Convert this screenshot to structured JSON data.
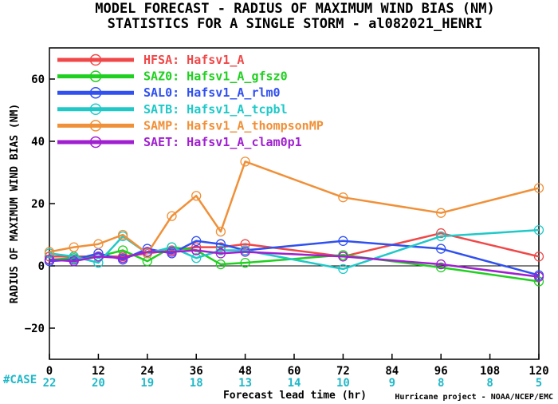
{
  "chart_data": {
    "type": "line",
    "title": "MODEL FORECAST - RADIUS OF MAXIMUM WIND BIAS (NM)",
    "subtitle": "STATISTICS FOR A SINGLE STORM - al082021_HENRI",
    "xlabel": "Forecast lead time (hr)",
    "ylabel": "RADIUS OF MAXIMUM WIND BIAS (NM)",
    "xlim": [
      0,
      120
    ],
    "ylim": [
      -30,
      70
    ],
    "xticks": [
      0,
      12,
      24,
      36,
      48,
      60,
      72,
      84,
      96,
      108,
      120
    ],
    "yticks": [
      -20,
      0,
      20,
      40,
      60
    ],
    "grid": false,
    "legend_position": "top-left",
    "case_label": "#CASE",
    "case_counts": [
      {
        "x": 0,
        "n": "22"
      },
      {
        "x": 12,
        "n": "20"
      },
      {
        "x": 24,
        "n": "19"
      },
      {
        "x": 36,
        "n": "18"
      },
      {
        "x": 48,
        "n": "13"
      },
      {
        "x": 60,
        "n": "14"
      },
      {
        "x": 72,
        "n": "10"
      },
      {
        "x": 84,
        "n": "9"
      },
      {
        "x": 96,
        "n": "8"
      },
      {
        "x": 108,
        "n": "8"
      },
      {
        "x": 120,
        "n": "5"
      }
    ],
    "credit": "Hurricane project - NOAA/NCEP/EMC",
    "series": [
      {
        "name": "HFSA: Hafsv1_A",
        "color": "#f04848",
        "x": [
          0,
          6,
          12,
          18,
          24,
          30,
          36,
          42,
          48,
          72,
          96,
          120
        ],
        "values": [
          3,
          3,
          3,
          3,
          4,
          5,
          6,
          6,
          7,
          3,
          10.5,
          3
        ]
      },
      {
        "name": "SAZ0: Hafsv1_A_gfsz0",
        "color": "#20d020",
        "x": [
          0,
          6,
          12,
          18,
          24,
          30,
          36,
          42,
          48,
          72,
          96,
          120
        ],
        "values": [
          2,
          2.5,
          3,
          5,
          1.5,
          6,
          5,
          0.5,
          1,
          3.5,
          -0.5,
          -5
        ]
      },
      {
        "name": "SAL0: Hafsv1_A_rlm0",
        "color": "#3050f0",
        "x": [
          0,
          6,
          12,
          18,
          24,
          30,
          36,
          42,
          48,
          72,
          96,
          120
        ],
        "values": [
          1.5,
          2,
          4,
          2,
          5.5,
          4,
          8,
          7,
          5,
          8,
          5.5,
          -3
        ]
      },
      {
        "name": "SATB: Hafsv1_A_tcpbl",
        "color": "#20c8c8",
        "x": [
          0,
          6,
          12,
          18,
          24,
          30,
          36,
          42,
          48,
          72,
          96,
          120
        ],
        "values": [
          4,
          3,
          1,
          9.5,
          4,
          6,
          2.5,
          5,
          5,
          -1,
          9.5,
          11.5
        ]
      },
      {
        "name": "SAMP: Hafsv1_A_thompsonMP",
        "color": "#f09038",
        "x": [
          0,
          6,
          12,
          18,
          24,
          30,
          36,
          42,
          48,
          72,
          96,
          120
        ],
        "values": [
          4.5,
          6,
          7,
          10,
          4,
          16,
          22.5,
          11,
          33.5,
          22,
          17,
          25
        ]
      },
      {
        "name": "SAET: Hafsv1_A_clam0p1",
        "color": "#a020d0",
        "x": [
          0,
          6,
          12,
          18,
          24,
          30,
          36,
          42,
          48,
          72,
          96,
          120
        ],
        "values": [
          2,
          1.5,
          3,
          2.5,
          4.5,
          4.5,
          5,
          4,
          4.5,
          3,
          0.5,
          -3.5
        ]
      }
    ]
  }
}
